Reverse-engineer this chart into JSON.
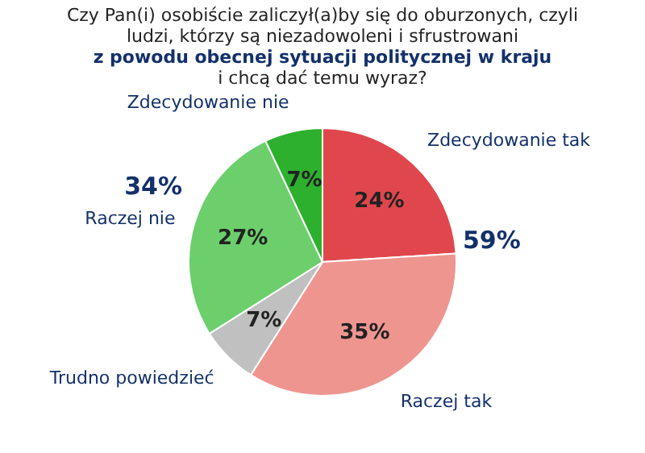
{
  "chart_data": {
    "type": "pie",
    "title": "Czy Pan(i) osobiście zaliczył(a)by się do oburzonych, czyli ludzi, którzy są niezadowoleni i sfrustrowani",
    "subtitle": "z powodu obecnej sytuacji politycznej w kraju",
    "annotations": [
      "i chcą dać temu wyraz?",
      "59%",
      "34%"
    ],
    "categories": [
      "Zdecydowanie tak",
      "Raczej tak",
      "Trudno powiedzieć",
      "Raczej nie",
      "Zdecydowanie nie"
    ],
    "values": [
      24,
      35,
      7,
      27,
      7
    ],
    "value_labels": [
      "24%",
      "35%",
      "7%",
      "27%",
      "7%"
    ],
    "colors": [
      "#e0474c",
      "#ef9590",
      "#c0c0c0",
      "#6ccf6c",
      "#2db02d"
    ],
    "legend": false
  }
}
